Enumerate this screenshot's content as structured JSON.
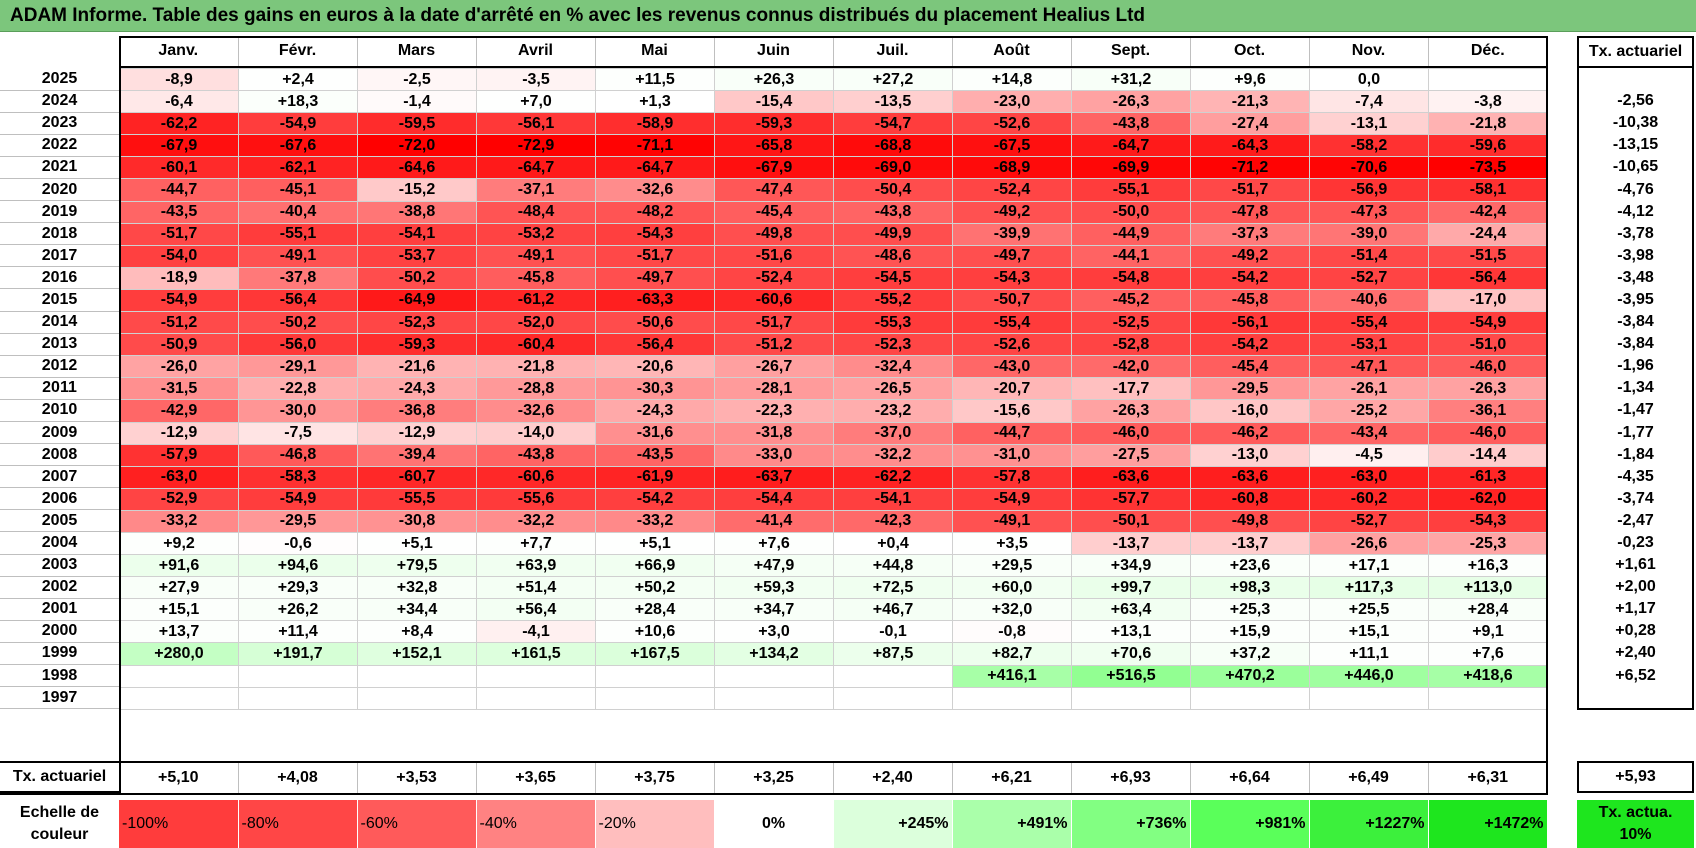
{
  "title": "ADAM Informe. Table des gains en euros à la date d'arrêté en % avec les revenus connus distribués du placement Healius Ltd",
  "months": [
    "Janv.",
    "Févr.",
    "Mars",
    "Avril",
    "Mai",
    "Juin",
    "Juil.",
    "Août",
    "Sept.",
    "Oct.",
    "Nov.",
    "Déc."
  ],
  "actuarial_header": "Tx. actuariel",
  "rows": [
    {
      "year": "2025",
      "values": [
        "-8,9",
        "+2,4",
        "-2,5",
        "-3,5",
        "+11,5",
        "+26,3",
        "+27,2",
        "+14,8",
        "+31,2",
        "+9,6",
        "0,0",
        ""
      ],
      "rate": ""
    },
    {
      "year": "2024",
      "values": [
        "-6,4",
        "+18,3",
        "-1,4",
        "+7,0",
        "+1,3",
        "-15,4",
        "-13,5",
        "-23,0",
        "-26,3",
        "-21,3",
        "-7,4",
        "-3,8"
      ],
      "rate": "-2,56"
    },
    {
      "year": "2023",
      "values": [
        "-62,2",
        "-54,9",
        "-59,5",
        "-56,1",
        "-58,9",
        "-59,3",
        "-54,7",
        "-52,6",
        "-43,8",
        "-27,4",
        "-13,1",
        "-21,8"
      ],
      "rate": "-10,38"
    },
    {
      "year": "2022",
      "values": [
        "-67,9",
        "-67,6",
        "-72,0",
        "-72,9",
        "-71,1",
        "-65,8",
        "-68,8",
        "-67,5",
        "-64,7",
        "-64,3",
        "-58,2",
        "-59,6"
      ],
      "rate": "-13,15"
    },
    {
      "year": "2021",
      "values": [
        "-60,1",
        "-62,1",
        "-64,6",
        "-64,7",
        "-64,7",
        "-67,9",
        "-69,0",
        "-68,9",
        "-69,9",
        "-71,2",
        "-70,6",
        "-73,5"
      ],
      "rate": "-10,65"
    },
    {
      "year": "2020",
      "values": [
        "-44,7",
        "-45,1",
        "-15,2",
        "-37,1",
        "-32,6",
        "-47,4",
        "-50,4",
        "-52,4",
        "-55,1",
        "-51,7",
        "-56,9",
        "-58,1"
      ],
      "rate": "-4,76"
    },
    {
      "year": "2019",
      "values": [
        "-43,5",
        "-40,4",
        "-38,8",
        "-48,4",
        "-48,2",
        "-45,4",
        "-43,8",
        "-49,2",
        "-50,0",
        "-47,8",
        "-47,3",
        "-42,4"
      ],
      "rate": "-4,12"
    },
    {
      "year": "2018",
      "values": [
        "-51,7",
        "-55,1",
        "-54,1",
        "-53,2",
        "-54,3",
        "-49,8",
        "-49,9",
        "-39,9",
        "-44,9",
        "-37,3",
        "-39,0",
        "-24,4"
      ],
      "rate": "-3,78"
    },
    {
      "year": "2017",
      "values": [
        "-54,0",
        "-49,1",
        "-53,7",
        "-49,1",
        "-51,7",
        "-51,6",
        "-48,6",
        "-49,7",
        "-44,1",
        "-49,2",
        "-51,4",
        "-51,5"
      ],
      "rate": "-3,98"
    },
    {
      "year": "2016",
      "values": [
        "-18,9",
        "-37,8",
        "-50,2",
        "-45,8",
        "-49,7",
        "-52,4",
        "-54,5",
        "-54,3",
        "-54,8",
        "-54,2",
        "-52,7",
        "-56,4"
      ],
      "rate": "-3,48"
    },
    {
      "year": "2015",
      "values": [
        "-54,9",
        "-56,4",
        "-64,9",
        "-61,2",
        "-63,3",
        "-60,6",
        "-55,2",
        "-50,7",
        "-45,2",
        "-45,8",
        "-40,6",
        "-17,0"
      ],
      "rate": "-3,95"
    },
    {
      "year": "2014",
      "values": [
        "-51,2",
        "-50,2",
        "-52,3",
        "-52,0",
        "-50,6",
        "-51,7",
        "-55,3",
        "-55,4",
        "-52,5",
        "-56,1",
        "-55,4",
        "-54,9"
      ],
      "rate": "-3,84"
    },
    {
      "year": "2013",
      "values": [
        "-50,9",
        "-56,0",
        "-59,3",
        "-60,4",
        "-56,4",
        "-51,2",
        "-52,3",
        "-52,6",
        "-52,8",
        "-54,2",
        "-53,1",
        "-51,0"
      ],
      "rate": "-3,84"
    },
    {
      "year": "2012",
      "values": [
        "-26,0",
        "-29,1",
        "-21,6",
        "-21,8",
        "-20,6",
        "-26,7",
        "-32,4",
        "-43,0",
        "-42,0",
        "-45,4",
        "-47,1",
        "-46,0"
      ],
      "rate": "-1,96"
    },
    {
      "year": "2011",
      "values": [
        "-31,5",
        "-22,8",
        "-24,3",
        "-28,8",
        "-30,3",
        "-28,1",
        "-26,5",
        "-20,7",
        "-17,7",
        "-29,5",
        "-26,1",
        "-26,3"
      ],
      "rate": "-1,34"
    },
    {
      "year": "2010",
      "values": [
        "-42,9",
        "-30,0",
        "-36,8",
        "-32,6",
        "-24,3",
        "-22,3",
        "-23,2",
        "-15,6",
        "-26,3",
        "-16,0",
        "-25,2",
        "-36,1"
      ],
      "rate": "-1,47"
    },
    {
      "year": "2009",
      "values": [
        "-12,9",
        "-7,5",
        "-12,9",
        "-14,0",
        "-31,6",
        "-31,8",
        "-37,0",
        "-44,7",
        "-46,0",
        "-46,2",
        "-43,4",
        "-46,0"
      ],
      "rate": "-1,77"
    },
    {
      "year": "2008",
      "values": [
        "-57,9",
        "-46,8",
        "-39,4",
        "-43,8",
        "-43,5",
        "-33,0",
        "-32,2",
        "-31,0",
        "-27,5",
        "-13,0",
        "-4,5",
        "-14,4"
      ],
      "rate": "-1,84"
    },
    {
      "year": "2007",
      "values": [
        "-63,0",
        "-58,3",
        "-60,7",
        "-60,6",
        "-61,9",
        "-63,7",
        "-62,2",
        "-57,8",
        "-63,6",
        "-63,6",
        "-63,0",
        "-61,3"
      ],
      "rate": "-4,35"
    },
    {
      "year": "2006",
      "values": [
        "-52,9",
        "-54,9",
        "-55,5",
        "-55,6",
        "-54,2",
        "-54,4",
        "-54,1",
        "-54,9",
        "-57,7",
        "-60,8",
        "-60,2",
        "-62,0"
      ],
      "rate": "-3,74"
    },
    {
      "year": "2005",
      "values": [
        "-33,2",
        "-29,5",
        "-30,8",
        "-32,2",
        "-33,2",
        "-41,4",
        "-42,3",
        "-49,1",
        "-50,1",
        "-49,8",
        "-52,7",
        "-54,3"
      ],
      "rate": "-2,47"
    },
    {
      "year": "2004",
      "values": [
        "+9,2",
        "-0,6",
        "+5,1",
        "+7,7",
        "+5,1",
        "+7,6",
        "+0,4",
        "+3,5",
        "-13,7",
        "-13,7",
        "-26,6",
        "-25,3"
      ],
      "rate": "-0,23"
    },
    {
      "year": "2003",
      "values": [
        "+91,6",
        "+94,6",
        "+79,5",
        "+63,9",
        "+66,9",
        "+47,9",
        "+44,8",
        "+29,5",
        "+34,9",
        "+23,6",
        "+17,1",
        "+16,3"
      ],
      "rate": "+1,61"
    },
    {
      "year": "2002",
      "values": [
        "+27,9",
        "+29,3",
        "+32,8",
        "+51,4",
        "+50,2",
        "+59,3",
        "+72,5",
        "+60,0",
        "+99,7",
        "+98,3",
        "+117,3",
        "+113,0"
      ],
      "rate": "+2,00"
    },
    {
      "year": "2001",
      "values": [
        "+15,1",
        "+26,2",
        "+34,4",
        "+56,4",
        "+28,4",
        "+34,7",
        "+46,7",
        "+32,0",
        "+63,4",
        "+25,3",
        "+25,5",
        "+28,4"
      ],
      "rate": "+1,17"
    },
    {
      "year": "2000",
      "values": [
        "+13,7",
        "+11,4",
        "+8,4",
        "-4,1",
        "+10,6",
        "+3,0",
        "-0,1",
        "-0,8",
        "+13,1",
        "+15,9",
        "+15,1",
        "+9,1"
      ],
      "rate": "+0,28"
    },
    {
      "year": "1999",
      "values": [
        "+280,0",
        "+191,7",
        "+152,1",
        "+161,5",
        "+167,5",
        "+134,2",
        "+87,5",
        "+82,7",
        "+70,6",
        "+37,2",
        "+11,1",
        "+7,6"
      ],
      "rate": "+2,40"
    },
    {
      "year": "1998",
      "values": [
        "",
        "",
        "",
        "",
        "",
        "",
        "",
        "+416,1",
        "+516,5",
        "+470,2",
        "+446,0",
        "+418,6"
      ],
      "rate": "+6,52"
    },
    {
      "year": "1997",
      "values": [
        "",
        "",
        "",
        "",
        "",
        "",
        "",
        "",
        "",
        "",
        "",
        ""
      ],
      "rate": ""
    }
  ],
  "totals": {
    "label": "Tx. actuariel",
    "values": [
      "+5,10",
      "+4,08",
      "+3,53",
      "+3,65",
      "+3,75",
      "+3,25",
      "+2,40",
      "+6,21",
      "+6,93",
      "+6,64",
      "+6,49",
      "+6,31"
    ],
    "rate": "+5,93"
  },
  "legend": {
    "label": "Echelle de couleur",
    "items": [
      {
        "label": "-100%",
        "color": "#ff3c3c"
      },
      {
        "label": "-80%",
        "color": "#ff4646"
      },
      {
        "label": "-60%",
        "color": "#ff5a5a"
      },
      {
        "label": "-40%",
        "color": "#ff8282"
      },
      {
        "label": "-20%",
        "color": "#ffbebe"
      },
      {
        "label": "0%",
        "color": "#ffffff"
      },
      {
        "label": "+245%",
        "color": "#dcffdc"
      },
      {
        "label": "+491%",
        "color": "#aaffaa"
      },
      {
        "label": "+736%",
        "color": "#82ff82"
      },
      {
        "label": "+981%",
        "color": "#5aff5a"
      },
      {
        "label": "+1227%",
        "color": "#3cf03c"
      },
      {
        "label": "+1472%",
        "color": "#1ee61e"
      }
    ],
    "rate_label": "Tx. actua. 10%",
    "rate_color": "#1ee61e"
  },
  "colors": {
    "title_bg": "#7cc67c",
    "neg_strong": "#ff0000",
    "pos_strong": "#00e600"
  }
}
